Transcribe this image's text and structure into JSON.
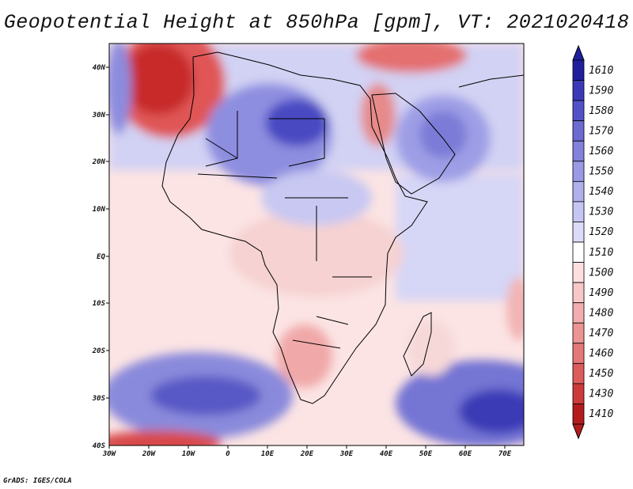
{
  "title": "Geopotential Height at 850hPa [gpm], VT: 2021020418",
  "footer": "GrADS: IGES/COLA",
  "map": {
    "lon_range": [
      -30,
      75
    ],
    "lat_range": [
      -40,
      45
    ],
    "x_ticks": [
      "30W",
      "20W",
      "10W",
      "0",
      "10E",
      "20E",
      "30E",
      "40E",
      "50E",
      "60E",
      "70E"
    ],
    "y_ticks": [
      "40N",
      "30N",
      "20N",
      "10N",
      "EQ",
      "10S",
      "20S",
      "30S",
      "40S"
    ]
  },
  "colorbar": {
    "levels": [
      "1610",
      "1590",
      "1580",
      "1570",
      "1560",
      "1550",
      "1540",
      "1530",
      "1520",
      "1510",
      "1500",
      "1490",
      "1480",
      "1470",
      "1460",
      "1450",
      "1430",
      "1410"
    ],
    "colors": [
      "#1f1f9e",
      "#3a3ab8",
      "#5252c8",
      "#6b6bd2",
      "#8282dc",
      "#9a9ae4",
      "#b0b0ec",
      "#c6c6f2",
      "#dcdcf8",
      "#ffffff",
      "#fce0e0",
      "#f8c8c8",
      "#f2aeae",
      "#ec9494",
      "#e47878",
      "#dc5c5c",
      "#cc3a3a",
      "#b41c1c"
    ]
  }
}
